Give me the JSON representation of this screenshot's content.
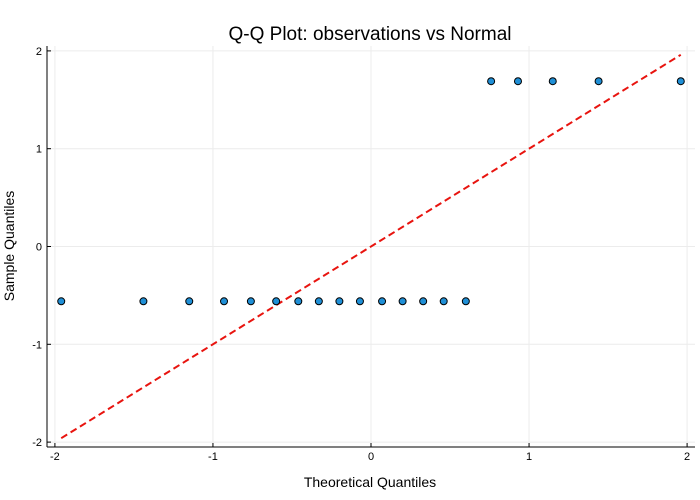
{
  "chart_data": {
    "type": "scatter",
    "title": "Q-Q Plot: observations vs Normal",
    "xlabel": "Theoretical Quantiles",
    "ylabel": "Sample Quantiles",
    "xlim": [
      -2.05,
      2.05
    ],
    "ylim": [
      -2.05,
      2.05
    ],
    "xticks": [
      -2,
      -1,
      0,
      1,
      2
    ],
    "yticks": [
      -2,
      -1,
      0,
      1,
      2
    ],
    "xtick_labels": [
      "-2",
      "-1",
      "0",
      "1",
      "2"
    ],
    "ytick_labels": [
      "-2",
      "-1",
      "0",
      "1",
      "2"
    ],
    "grid": true,
    "legend": "none",
    "series": [
      {
        "kind": "points",
        "color": "#1f8fd6",
        "edge_color": "#000000",
        "x": [
          -1.96,
          -1.44,
          -1.15,
          -0.93,
          -0.76,
          -0.6,
          -0.46,
          -0.33,
          -0.2,
          -0.07,
          0.07,
          0.2,
          0.33,
          0.46,
          0.6,
          0.76,
          0.93,
          1.15,
          1.44,
          1.96
        ],
        "y": [
          -0.56,
          -0.56,
          -0.56,
          -0.56,
          -0.56,
          -0.56,
          -0.56,
          -0.56,
          -0.56,
          -0.56,
          -0.56,
          -0.56,
          -0.56,
          -0.56,
          -0.56,
          1.69,
          1.69,
          1.69,
          1.69,
          1.69
        ]
      },
      {
        "kind": "reference-line",
        "color": "#e8140f",
        "style": "dashed",
        "x": [
          -1.96,
          1.96
        ],
        "y": [
          -1.96,
          1.96
        ]
      }
    ]
  }
}
